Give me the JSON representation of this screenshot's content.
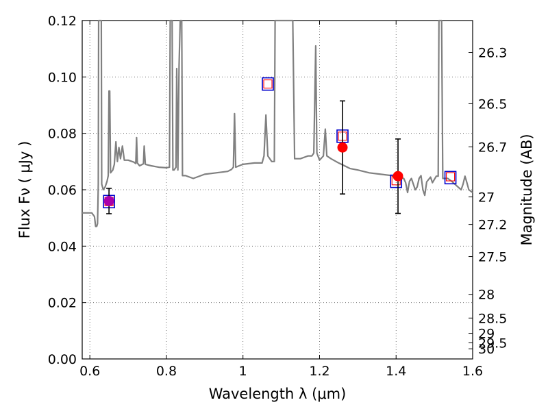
{
  "chart_data": {
    "type": "scatter",
    "title": "",
    "xlabel": "Wavelength  λ (μm)",
    "ylabel": "Flux  Fν  ( μJy )",
    "ylabel_right": "Magnitude (AB)",
    "xlim": [
      0.58,
      1.6
    ],
    "ylim": [
      0.0,
      0.12
    ],
    "grid": true,
    "legend": "none",
    "x_ticks": [
      0.6,
      0.8,
      1.0,
      1.2,
      1.4,
      1.6
    ],
    "x_tick_labels": [
      "0.6",
      "0.8",
      "1",
      "1.2",
      "1.4",
      "1.6"
    ],
    "y_ticks": [
      0.0,
      0.02,
      0.04,
      0.06,
      0.08,
      0.1,
      0.12
    ],
    "y_tick_labels": [
      "0.00",
      "0.02",
      "0.04",
      "0.06",
      "0.08",
      "0.10",
      "0.12"
    ],
    "right_ticks": [
      {
        "label": "26.3",
        "flux": 0.1087
      },
      {
        "label": "26.5",
        "flux": 0.0905
      },
      {
        "label": "26.7",
        "flux": 0.0752
      },
      {
        "label": "27",
        "flux": 0.0575
      },
      {
        "label": "27.2",
        "flux": 0.0477
      },
      {
        "label": "27.5",
        "flux": 0.0363
      },
      {
        "label": "28",
        "flux": 0.0229
      },
      {
        "label": "28.5",
        "flux": 0.0145
      },
      {
        "label": "29",
        "flux": 0.0091
      },
      {
        "label": "29.5",
        "flux": 0.0057
      },
      {
        "label": "30",
        "flux": 0.0036
      }
    ],
    "series": [
      {
        "kind": "line",
        "color": "#808080",
        "points": [
          [
            0.58,
            0.0518
          ],
          [
            0.605,
            0.0518
          ],
          [
            0.612,
            0.0505
          ],
          [
            0.615,
            0.047
          ],
          [
            0.618,
            0.047
          ],
          [
            0.62,
            0.048
          ],
          [
            0.622,
            0.062
          ],
          [
            0.623,
            0.12
          ],
          [
            0.63,
            0.12
          ],
          [
            0.631,
            0.062
          ],
          [
            0.635,
            0.06
          ],
          [
            0.64,
            0.061
          ],
          [
            0.645,
            0.063
          ],
          [
            0.648,
            0.065
          ],
          [
            0.65,
            0.095
          ],
          [
            0.652,
            0.095
          ],
          [
            0.654,
            0.066
          ],
          [
            0.66,
            0.067
          ],
          [
            0.664,
            0.069
          ],
          [
            0.668,
            0.077
          ],
          [
            0.672,
            0.07
          ],
          [
            0.676,
            0.075
          ],
          [
            0.68,
            0.071
          ],
          [
            0.685,
            0.0755
          ],
          [
            0.69,
            0.0705
          ],
          [
            0.7,
            0.0705
          ],
          [
            0.715,
            0.0698
          ],
          [
            0.72,
            0.0693
          ],
          [
            0.722,
            0.0785
          ],
          [
            0.724,
            0.0695
          ],
          [
            0.73,
            0.0685
          ],
          [
            0.74,
            0.0692
          ],
          [
            0.742,
            0.0755
          ],
          [
            0.745,
            0.069
          ],
          [
            0.76,
            0.0685
          ],
          [
            0.78,
            0.068
          ],
          [
            0.8,
            0.0678
          ],
          [
            0.808,
            0.068
          ],
          [
            0.81,
            0.12
          ],
          [
            0.815,
            0.12
          ],
          [
            0.817,
            0.067
          ],
          [
            0.82,
            0.067
          ],
          [
            0.825,
            0.068
          ],
          [
            0.827,
            0.103
          ],
          [
            0.83,
            0.067
          ],
          [
            0.833,
            0.104
          ],
          [
            0.836,
            0.12
          ],
          [
            0.84,
            0.12
          ],
          [
            0.842,
            0.065
          ],
          [
            0.85,
            0.065
          ],
          [
            0.87,
            0.064
          ],
          [
            0.9,
            0.0655
          ],
          [
            0.93,
            0.066
          ],
          [
            0.96,
            0.0665
          ],
          [
            0.97,
            0.0672
          ],
          [
            0.975,
            0.068
          ],
          [
            0.978,
            0.087
          ],
          [
            0.981,
            0.068
          ],
          [
            0.99,
            0.0685
          ],
          [
            1.0,
            0.069
          ],
          [
            1.03,
            0.0695
          ],
          [
            1.05,
            0.0695
          ],
          [
            1.055,
            0.072
          ],
          [
            1.06,
            0.0865
          ],
          [
            1.065,
            0.072
          ],
          [
            1.075,
            0.07
          ],
          [
            1.082,
            0.07
          ],
          [
            1.084,
            0.12
          ],
          [
            1.087,
            0.12
          ],
          [
            1.13,
            0.12
          ],
          [
            1.135,
            0.071
          ],
          [
            1.15,
            0.071
          ],
          [
            1.17,
            0.072
          ],
          [
            1.18,
            0.072
          ],
          [
            1.185,
            0.073
          ],
          [
            1.19,
            0.111
          ],
          [
            1.193,
            0.073
          ],
          [
            1.2,
            0.0705
          ],
          [
            1.21,
            0.072
          ],
          [
            1.215,
            0.0815
          ],
          [
            1.219,
            0.072
          ],
          [
            1.23,
            0.071
          ],
          [
            1.25,
            0.0695
          ],
          [
            1.28,
            0.0675
          ],
          [
            1.3,
            0.067
          ],
          [
            1.33,
            0.066
          ],
          [
            1.36,
            0.0655
          ],
          [
            1.39,
            0.065
          ],
          [
            1.4,
            0.0645
          ],
          [
            1.42,
            0.064
          ],
          [
            1.425,
            0.0625
          ],
          [
            1.43,
            0.059
          ],
          [
            1.435,
            0.063
          ],
          [
            1.44,
            0.064
          ],
          [
            1.45,
            0.06
          ],
          [
            1.455,
            0.061
          ],
          [
            1.46,
            0.064
          ],
          [
            1.465,
            0.065
          ],
          [
            1.47,
            0.06
          ],
          [
            1.475,
            0.058
          ],
          [
            1.48,
            0.0628
          ],
          [
            1.49,
            0.0645
          ],
          [
            1.495,
            0.0625
          ],
          [
            1.505,
            0.0648
          ],
          [
            1.51,
            0.0648
          ],
          [
            1.512,
            0.12
          ],
          [
            1.519,
            0.12
          ],
          [
            1.522,
            0.064
          ],
          [
            1.535,
            0.064
          ],
          [
            1.545,
            0.063
          ],
          [
            1.56,
            0.0612
          ],
          [
            1.57,
            0.06
          ],
          [
            1.575,
            0.062
          ],
          [
            1.58,
            0.0648
          ],
          [
            1.585,
            0.0625
          ],
          [
            1.59,
            0.06
          ],
          [
            1.6,
            0.059
          ]
        ]
      },
      {
        "kind": "open-square",
        "color": "#0000cc",
        "points": [
          [
            0.65,
            0.0558
          ],
          [
            1.065,
            0.0975
          ],
          [
            1.26,
            0.079
          ],
          [
            1.4,
            0.063
          ],
          [
            1.542,
            0.0643
          ]
        ]
      },
      {
        "kind": "small-open-square",
        "color": "#ff0000",
        "points": [
          [
            0.65,
            0.0558
          ],
          [
            1.065,
            0.0975
          ],
          [
            1.26,
            0.079
          ],
          [
            1.4,
            0.0632
          ],
          [
            1.542,
            0.0646
          ]
        ]
      },
      {
        "kind": "point-with-errorbar",
        "points": [
          {
            "x": 0.65,
            "y": 0.056,
            "err": 0.0045,
            "color": "#aa00aa"
          },
          {
            "x": 1.26,
            "y": 0.075,
            "err": 0.0165,
            "color": "#ff0000"
          },
          {
            "x": 1.405,
            "y": 0.0648,
            "err": 0.0132,
            "color": "#ff0000"
          }
        ]
      }
    ]
  }
}
